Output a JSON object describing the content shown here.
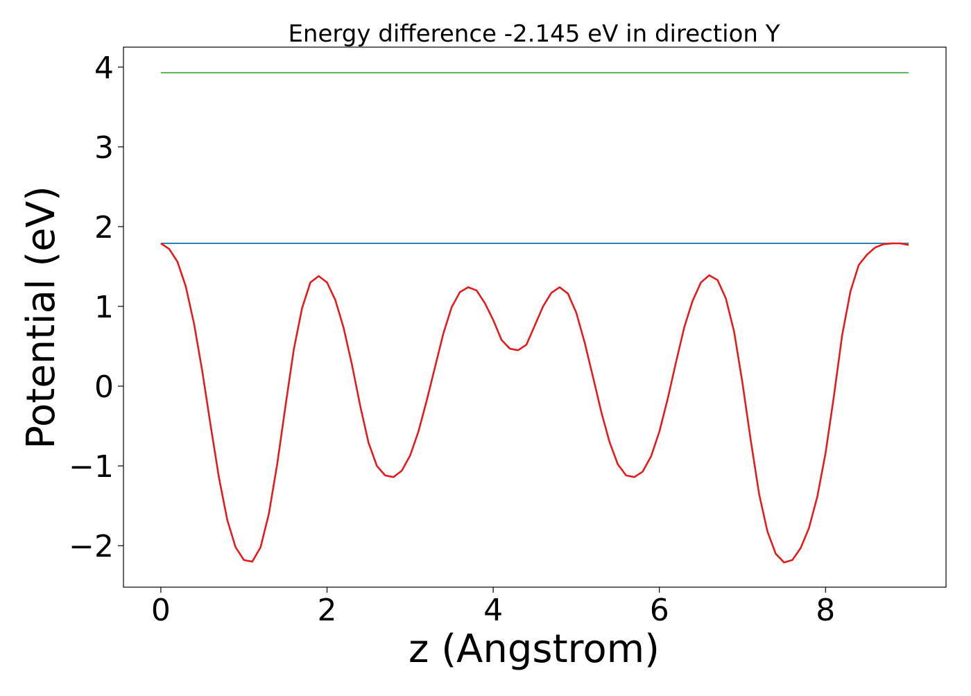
{
  "chart_data": {
    "type": "line",
    "title": "Energy difference -2.145 eV in direction Y",
    "xlabel": "z (Angstrom)",
    "ylabel": "Potential (eV)",
    "xlim": [
      -0.45,
      9.45
    ],
    "ylim": [
      -2.52,
      4.25
    ],
    "xticks": [
      0,
      2,
      4,
      6,
      8
    ],
    "xtick_labels": [
      "0",
      "2",
      "4",
      "6",
      "8"
    ],
    "yticks": [
      -2,
      -1,
      0,
      1,
      2,
      3,
      4
    ],
    "ytick_labels": [
      "−2",
      "−1",
      "0",
      "1",
      "2",
      "3",
      "4"
    ],
    "grid": false,
    "legend": "none",
    "series": [
      {
        "color": "#e41a1c",
        "x": [
          0,
          0.1,
          0.2,
          0.3,
          0.4,
          0.5,
          0.6,
          0.7,
          0.8,
          0.9,
          1.0,
          1.1,
          1.2,
          1.3,
          1.4,
          1.5,
          1.6,
          1.7,
          1.8,
          1.9,
          2.0,
          2.1,
          2.2,
          2.3,
          2.4,
          2.5,
          2.6,
          2.7,
          2.8,
          2.9,
          3.0,
          3.1,
          3.2,
          3.3,
          3.4,
          3.5,
          3.6,
          3.7,
          3.8,
          3.9,
          4.0,
          4.1,
          4.2,
          4.3,
          4.4,
          4.5,
          4.6,
          4.7,
          4.8,
          4.9,
          5.0,
          5.1,
          5.2,
          5.3,
          5.4,
          5.5,
          5.6,
          5.7,
          5.8,
          5.9,
          6.0,
          6.1,
          6.2,
          6.3,
          6.4,
          6.5,
          6.6,
          6.7,
          6.8,
          6.9,
          7.0,
          7.1,
          7.2,
          7.3,
          7.4,
          7.5,
          7.6,
          7.7,
          7.8,
          7.9,
          8.0,
          8.1,
          8.2,
          8.3,
          8.4,
          8.5,
          8.6,
          8.7,
          8.8,
          8.9,
          9.0
        ],
        "y": [
          1.79,
          1.72,
          1.56,
          1.25,
          0.78,
          0.18,
          -0.5,
          -1.15,
          -1.68,
          -2.02,
          -2.18,
          -2.2,
          -2.02,
          -1.6,
          -0.98,
          -0.25,
          0.46,
          0.98,
          1.3,
          1.38,
          1.3,
          1.08,
          0.73,
          0.27,
          -0.25,
          -0.71,
          -1.0,
          -1.12,
          -1.14,
          -1.06,
          -0.87,
          -0.57,
          -0.18,
          0.24,
          0.66,
          0.99,
          1.18,
          1.24,
          1.2,
          1.04,
          0.83,
          0.58,
          0.47,
          0.45,
          0.52,
          0.76,
          1.0,
          1.17,
          1.24,
          1.16,
          0.92,
          0.55,
          0.12,
          -0.32,
          -0.7,
          -0.98,
          -1.12,
          -1.14,
          -1.07,
          -0.88,
          -0.57,
          -0.16,
          0.3,
          0.74,
          1.07,
          1.3,
          1.39,
          1.33,
          1.1,
          0.68,
          0.04,
          -0.68,
          -1.35,
          -1.82,
          -2.1,
          -2.21,
          -2.18,
          -2.03,
          -1.78,
          -1.39,
          -0.84,
          -0.13,
          0.64,
          1.19,
          1.52,
          1.65,
          1.74,
          1.78,
          1.79,
          1.79,
          1.77
        ]
      },
      {
        "color": "#1f77b4",
        "x": [
          0,
          9
        ],
        "y": [
          1.79,
          1.79
        ]
      },
      {
        "color": "#4daf4a",
        "x": [
          0,
          9
        ],
        "y": [
          3.93,
          3.93
        ]
      }
    ]
  }
}
